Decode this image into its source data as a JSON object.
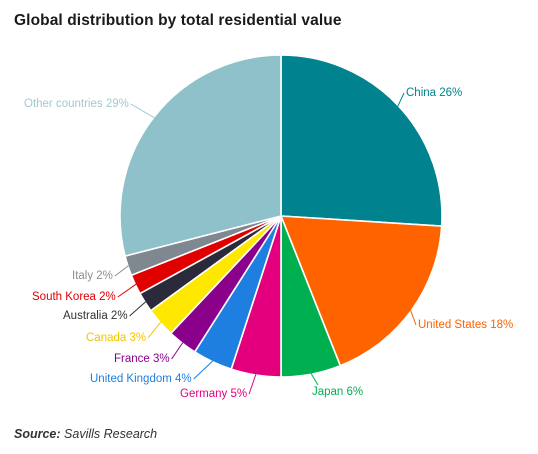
{
  "title": "Global distribution by total residential value",
  "source_label": "Source",
  "source_text": "Savills Research",
  "chart_data": {
    "type": "pie",
    "title": "Global distribution by total residential value",
    "slices": [
      {
        "name": "China",
        "value": 26,
        "label": "China 26%",
        "color": "#00838f"
      },
      {
        "name": "United States",
        "value": 18,
        "label": "United States 18%",
        "color": "#ff6300"
      },
      {
        "name": "Japan",
        "value": 6,
        "label": "Japan 6%",
        "color": "#00b050"
      },
      {
        "name": "Germany",
        "value": 5,
        "label": "Germany 5%",
        "color": "#e4007c"
      },
      {
        "name": "United Kingdom",
        "value": 4,
        "label": "United Kingdom 4%",
        "color": "#1e7fe0"
      },
      {
        "name": "France",
        "value": 3,
        "label": "France 3%",
        "color": "#8b008b"
      },
      {
        "name": "Canada",
        "value": 3,
        "label": "Canada 3%",
        "color": "#ffe800"
      },
      {
        "name": "Australia",
        "value": 2,
        "label": "Australia 2%",
        "color": "#2a2a3a"
      },
      {
        "name": "South Korea",
        "value": 2,
        "label": "South Korea 2%",
        "color": "#e00000"
      },
      {
        "name": "Italy",
        "value": 2,
        "label": "Italy 2%",
        "color": "#7f8890"
      },
      {
        "name": "Other countries",
        "value": 29,
        "label": "Other countries 29%",
        "color": "#8fc1cb"
      }
    ],
    "label_colors": {
      "China": "#00838f",
      "United States": "#ff6300",
      "Japan": "#00b050",
      "Germany": "#e4007c",
      "United Kingdom": "#1e7fe0",
      "France": "#8b008b",
      "Canada": "#f2c500",
      "Australia": "#333333",
      "South Korea": "#e00000",
      "Italy": "#8a9096",
      "Other countries": "#9fcad3"
    }
  }
}
